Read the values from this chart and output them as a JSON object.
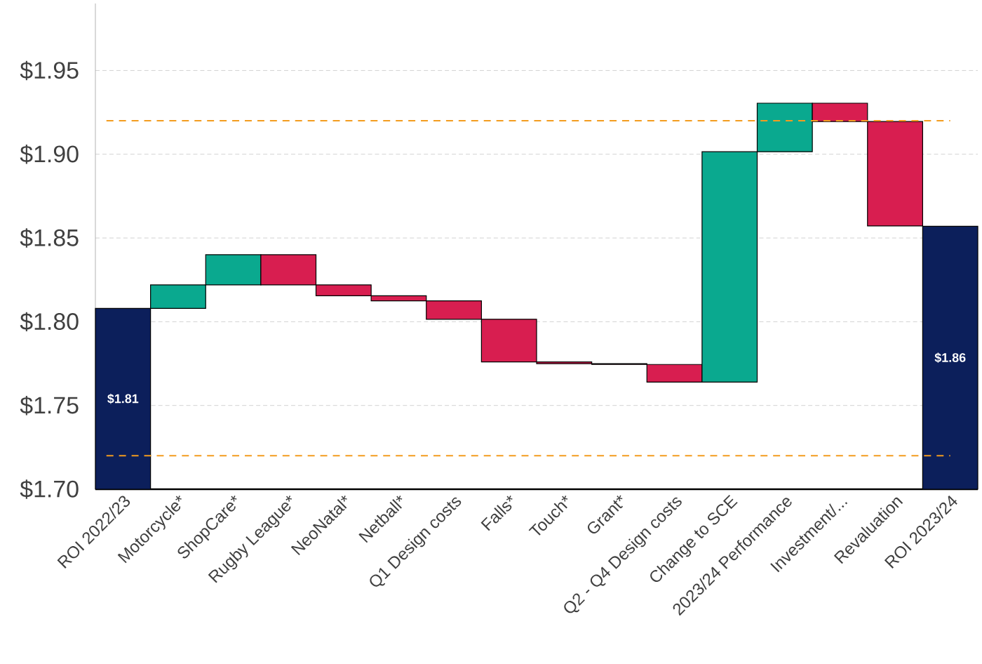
{
  "chart_data": {
    "type": "bar",
    "categories": [
      "ROI 2022/23",
      "Motorcycle*",
      "ShopCare*",
      "Rugby League*",
      "NeoNatal*",
      "Netball*",
      "Q1 Design costs",
      "Falls*",
      "Touch*",
      "Grant*",
      "Q2 - Q4 Design costs",
      "Change to SCE",
      "2023/24 Performance",
      "Investment/...",
      "Revaluation",
      "ROI 2023/24"
    ],
    "values": [
      1.808,
      0.014,
      0.018,
      -0.018,
      -0.0065,
      -0.003,
      -0.011,
      -0.0255,
      -0.001,
      -0.0005,
      -0.0105,
      0.1375,
      0.029,
      -0.011,
      -0.0623,
      1.857
    ],
    "base": [
      null,
      1.808,
      1.822,
      1.84,
      1.822,
      1.8155,
      1.8125,
      1.8015,
      1.776,
      1.775,
      1.7745,
      1.764,
      1.9015,
      1.9305,
      1.9195,
      null
    ],
    "colors": [
      "#0c1f5b",
      "#0aa98f",
      "#0aa98f",
      "#d81e50",
      "#d81e50",
      "#d81e50",
      "#d81e50",
      "#d81e50",
      "#d81e50",
      "#d81e50",
      "#d81e50",
      "#0aa98f",
      "#0aa98f",
      "#d81e50",
      "#d81e50",
      "#0c1f5b"
    ],
    "value_labels": [
      "$1.81",
      null,
      null,
      null,
      null,
      null,
      null,
      null,
      null,
      null,
      null,
      null,
      null,
      null,
      null,
      "$1.86"
    ],
    "ylim": [
      1.7,
      1.99
    ],
    "yticks": [
      {
        "value": 1.7,
        "label": "$1.70"
      },
      {
        "value": 1.75,
        "label": "$1.75"
      },
      {
        "value": 1.8,
        "label": "$1.80"
      },
      {
        "value": 1.85,
        "label": "$1.85"
      },
      {
        "value": 1.9,
        "label": "$1.90"
      },
      {
        "value": 1.95,
        "label": "$1.95"
      }
    ],
    "grid": "y",
    "ref_lines": [
      {
        "axis": "y",
        "value": 1.92,
        "color": "#f39c1f",
        "line_style": "dashed"
      },
      {
        "axis": "y",
        "value": 1.72,
        "color": "#f39c1f",
        "line_style": "dashed"
      }
    ]
  }
}
